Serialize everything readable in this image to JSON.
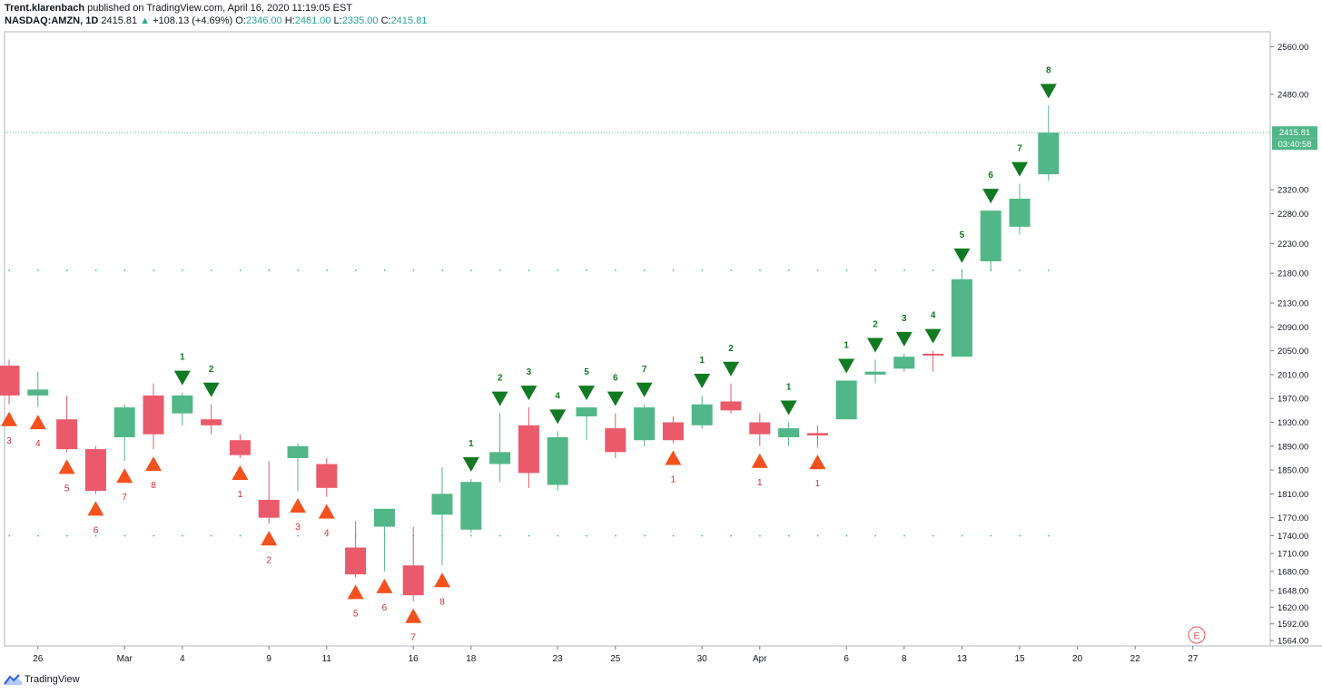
{
  "header": {
    "published_by": "Trent.klarenbach",
    "published_text": " published on TradingView.com, April 16, 2020 11:19:05 EST",
    "symbol": "NASDAQ:AMZN, 1D",
    "last": "2415.81",
    "change_arrow": "▲",
    "change": "+108.13 (+4.69%)",
    "o_label": "O:",
    "o_val": "2346.00",
    "h_label": "H:",
    "h_val": "2461.00",
    "l_label": "L:",
    "l_val": "2335.00",
    "c_label": "C:",
    "c_val": "2415.81"
  },
  "price_tag": {
    "price": "2415.81",
    "countdown": "03:40:58"
  },
  "footer": {
    "brand": "TradingView",
    "logo_icon": "tradingview-logo-icon"
  },
  "earnings_marker": "E",
  "colors": {
    "up": "#52b788",
    "down": "#ea5a6a",
    "sell_marker": "#117a23",
    "buy_marker": "#f4511e",
    "buy_text": "#d32f2f",
    "grid_dot": "#26a69a"
  },
  "chart_data": {
    "type": "candlestick",
    "ylim": [
      1555,
      2585
    ],
    "yticks": [
      "2560.00",
      "2480.00",
      "2320.00",
      "2280.00",
      "2230.00",
      "2180.00",
      "2130.00",
      "2090.00",
      "2050.00",
      "2010.00",
      "1970.00",
      "1930.00",
      "1890.00",
      "1850.00",
      "1810.00",
      "1770.00",
      "1740.00",
      "1710.00",
      "1680.00",
      "1648.00",
      "1620.00",
      "1592.00",
      "1564.00"
    ],
    "xticks": [
      "26",
      "Mar",
      "4",
      "9",
      "11",
      "16",
      "18",
      "23",
      "25",
      "30",
      "Apr",
      "6",
      "8",
      "13",
      "15",
      "20",
      "22",
      "27"
    ],
    "candles": [
      {
        "o": 2025,
        "h": 2035,
        "l": 1960,
        "c": 1975,
        "d": "down"
      },
      {
        "o": 1975,
        "h": 2015,
        "l": 1955,
        "c": 1985,
        "d": "up"
      },
      {
        "o": 1935,
        "h": 1975,
        "l": 1880,
        "c": 1885,
        "d": "down"
      },
      {
        "o": 1885,
        "h": 1890,
        "l": 1810,
        "c": 1815,
        "d": "down"
      },
      {
        "o": 1905,
        "h": 1960,
        "l": 1865,
        "c": 1955,
        "d": "up"
      },
      {
        "o": 1975,
        "h": 1995,
        "l": 1885,
        "c": 1910,
        "d": "down"
      },
      {
        "o": 1945,
        "h": 1980,
        "l": 1925,
        "c": 1975,
        "d": "up"
      },
      {
        "o": 1935,
        "h": 1960,
        "l": 1910,
        "c": 1925,
        "d": "down"
      },
      {
        "o": 1900,
        "h": 1910,
        "l": 1870,
        "c": 1875,
        "d": "down"
      },
      {
        "o": 1800,
        "h": 1865,
        "l": 1760,
        "c": 1770,
        "d": "down"
      },
      {
        "o": 1870,
        "h": 1895,
        "l": 1815,
        "c": 1890,
        "d": "up"
      },
      {
        "o": 1860,
        "h": 1870,
        "l": 1805,
        "c": 1820,
        "d": "down"
      },
      {
        "o": 1720,
        "h": 1765,
        "l": 1670,
        "c": 1675,
        "d": "down"
      },
      {
        "o": 1755,
        "h": 1785,
        "l": 1680,
        "c": 1785,
        "d": "up"
      },
      {
        "o": 1690,
        "h": 1755,
        "l": 1630,
        "c": 1640,
        "d": "down"
      },
      {
        "o": 1775,
        "h": 1855,
        "l": 1690,
        "c": 1810,
        "d": "up"
      },
      {
        "o": 1750,
        "h": 1835,
        "l": 1745,
        "c": 1830,
        "d": "up"
      },
      {
        "o": 1860,
        "h": 1945,
        "l": 1830,
        "c": 1880,
        "d": "up"
      },
      {
        "o": 1925,
        "h": 1955,
        "l": 1820,
        "c": 1845,
        "d": "down"
      },
      {
        "o": 1825,
        "h": 1915,
        "l": 1815,
        "c": 1905,
        "d": "up"
      },
      {
        "o": 1940,
        "h": 1955,
        "l": 1900,
        "c": 1955,
        "d": "up"
      },
      {
        "o": 1920,
        "h": 1945,
        "l": 1870,
        "c": 1880,
        "d": "down"
      },
      {
        "o": 1900,
        "h": 1960,
        "l": 1890,
        "c": 1955,
        "d": "up"
      },
      {
        "o": 1930,
        "h": 1940,
        "l": 1895,
        "c": 1900,
        "d": "down"
      },
      {
        "o": 1925,
        "h": 1975,
        "l": 1920,
        "c": 1960,
        "d": "up"
      },
      {
        "o": 1965,
        "h": 1995,
        "l": 1945,
        "c": 1950,
        "d": "down"
      },
      {
        "o": 1930,
        "h": 1945,
        "l": 1890,
        "c": 1910,
        "d": "down"
      },
      {
        "o": 1905,
        "h": 1930,
        "l": 1890,
        "c": 1920,
        "d": "up"
      },
      {
        "o": 1912,
        "h": 1925,
        "l": 1888,
        "c": 1908,
        "d": "down"
      },
      {
        "o": 1935,
        "h": 2000,
        "l": 1935,
        "c": 2000,
        "d": "up"
      },
      {
        "o": 2010,
        "h": 2035,
        "l": 1995,
        "c": 2015,
        "d": "up"
      },
      {
        "o": 2020,
        "h": 2045,
        "l": 2015,
        "c": 2040,
        "d": "up"
      },
      {
        "o": 2045,
        "h": 2050,
        "l": 2015,
        "c": 2043,
        "d": "down"
      },
      {
        "o": 2040,
        "h": 2185,
        "l": 2040,
        "c": 2170,
        "d": "up"
      },
      {
        "o": 2200,
        "h": 2285,
        "l": 2185,
        "c": 2285,
        "d": "up"
      },
      {
        "o": 2258,
        "h": 2330,
        "l": 2245,
        "c": 2305,
        "d": "up"
      },
      {
        "o": 2346,
        "h": 2461,
        "l": 2335,
        "c": 2415.81,
        "d": "up"
      }
    ],
    "sell_setup": [
      {
        "i": 6,
        "n": "1"
      },
      {
        "i": 7,
        "n": "2"
      },
      {
        "i": 16,
        "n": "1"
      },
      {
        "i": 17,
        "n": "2"
      },
      {
        "i": 18,
        "n": "3"
      },
      {
        "i": 19,
        "n": "4"
      },
      {
        "i": 20,
        "n": "5"
      },
      {
        "i": 21,
        "n": "6"
      },
      {
        "i": 22,
        "n": "7"
      },
      {
        "i": 24,
        "n": "1"
      },
      {
        "i": 25,
        "n": "2"
      },
      {
        "i": 27,
        "n": "1"
      },
      {
        "i": 29,
        "n": "1"
      },
      {
        "i": 30,
        "n": "2"
      },
      {
        "i": 31,
        "n": "3"
      },
      {
        "i": 32,
        "n": "4"
      },
      {
        "i": 33,
        "n": "5"
      },
      {
        "i": 34,
        "n": "6"
      },
      {
        "i": 35,
        "n": "7"
      },
      {
        "i": 36,
        "n": "8"
      }
    ],
    "buy_setup": [
      {
        "i": 0,
        "n": "3"
      },
      {
        "i": 1,
        "n": "4"
      },
      {
        "i": 2,
        "n": "5"
      },
      {
        "i": 3,
        "n": "6"
      },
      {
        "i": 4,
        "n": "7"
      },
      {
        "i": 5,
        "n": "8"
      },
      {
        "i": 8,
        "n": "1"
      },
      {
        "i": 9,
        "n": "2"
      },
      {
        "i": 10,
        "n": "3"
      },
      {
        "i": 11,
        "n": "4"
      },
      {
        "i": 12,
        "n": "5"
      },
      {
        "i": 13,
        "n": "6"
      },
      {
        "i": 14,
        "n": "7"
      },
      {
        "i": 15,
        "n": "8"
      },
      {
        "i": 23,
        "n": "1"
      },
      {
        "i": 26,
        "n": "1"
      },
      {
        "i": 28,
        "n": "1"
      }
    ],
    "support_level": 1740,
    "resistance_level": 2185,
    "last_price": 2415.81
  }
}
